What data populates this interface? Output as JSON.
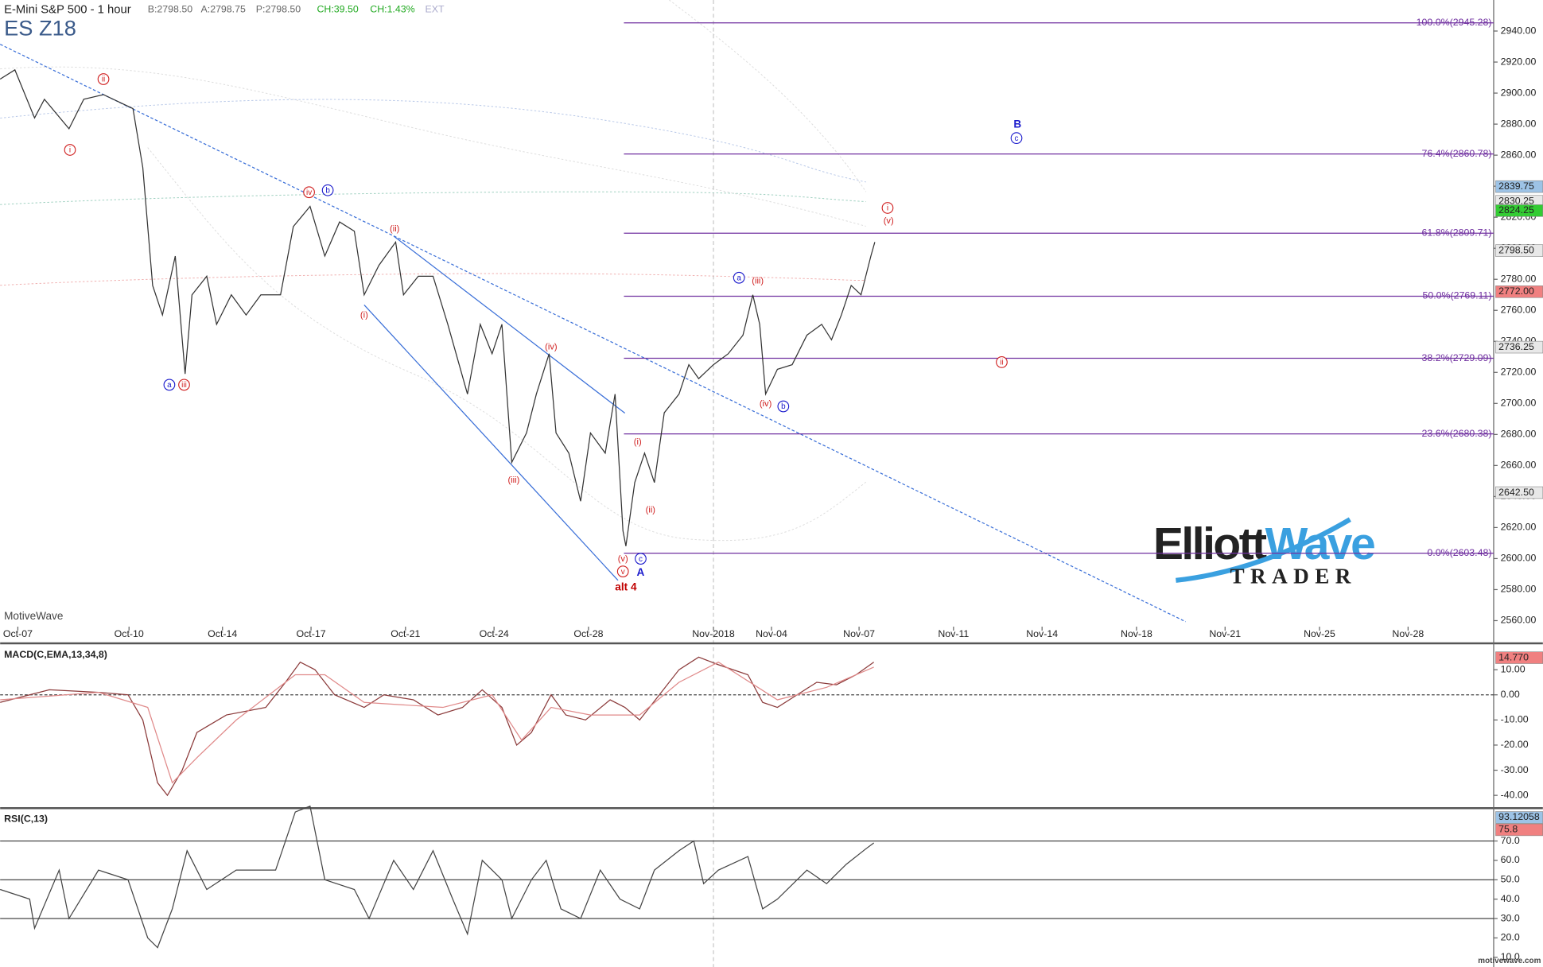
{
  "header": {
    "title": "E-Mini S&P 500 - 1 hour",
    "quote": [
      "B:2798.50",
      "A:2798.75",
      "P:2798.50",
      "CH:39.50",
      "CH:1.43%",
      "EXT"
    ],
    "symbol": "ES Z18"
  },
  "footer": {
    "left": "MotiveWave",
    "right": "motivewave.com"
  },
  "logo": {
    "part1": "Elliott",
    "part2": "Wave",
    "part3": "TRADER"
  },
  "chart_data": [
    {
      "type": "line",
      "xlim": [
        0,
        151.8
      ],
      "xticks": [
        {
          "value": 1.8,
          "label": "Oct-07"
        },
        {
          "value": 13.1,
          "label": "Oct-10"
        },
        {
          "value": 22.6,
          "label": "Oct-14"
        },
        {
          "value": 31.6,
          "label": "Oct-17"
        },
        {
          "value": 41.2,
          "label": "Oct-21"
        },
        {
          "value": 50.2,
          "label": "Oct-24"
        },
        {
          "value": 59.8,
          "label": "Oct-28"
        },
        {
          "value": 72.5,
          "label": "Nov-2018"
        },
        {
          "value": 78.4,
          "label": "Nov-04"
        },
        {
          "value": 87.3,
          "label": "Nov-07"
        },
        {
          "value": 96.9,
          "label": "Nov-11"
        },
        {
          "value": 105.9,
          "label": "Nov-14"
        },
        {
          "value": 115.5,
          "label": "Nov-18"
        },
        {
          "value": 124.5,
          "label": "Nov-21"
        },
        {
          "value": 134.1,
          "label": "Nov-25"
        },
        {
          "value": 143.1,
          "label": "Nov-28"
        }
      ],
      "ylim": [
        2546,
        2960
      ],
      "yticks": [
        {
          "value": 2560,
          "label": "2560.00"
        },
        {
          "value": 2580,
          "label": "2580.00"
        },
        {
          "value": 2600,
          "label": "2600.00"
        },
        {
          "value": 2620,
          "label": "2620.00"
        },
        {
          "value": 2640,
          "label": "2640.00"
        },
        {
          "value": 2660,
          "label": "2660.00"
        },
        {
          "value": 2680,
          "label": "2680.00"
        },
        {
          "value": 2700,
          "label": "2700.00"
        },
        {
          "value": 2720,
          "label": "2720.00"
        },
        {
          "value": 2740,
          "label": "2740.00"
        },
        {
          "value": 2760,
          "label": "2760.00"
        },
        {
          "value": 2780,
          "label": "2780.00"
        },
        {
          "value": 2800,
          "label": "2800.00"
        },
        {
          "value": 2820,
          "label": "2820.00"
        },
        {
          "value": 2840,
          "label": "2840.00"
        },
        {
          "value": 2860,
          "label": "2860.00"
        },
        {
          "value": 2880,
          "label": "2880.00"
        },
        {
          "value": 2900,
          "label": "2900.00"
        },
        {
          "value": 2920,
          "label": "2920.00"
        },
        {
          "value": 2940,
          "label": "2940.00"
        }
      ],
      "series": [
        {
          "color": "#333333",
          "x": [
            0,
            1.5,
            3.5,
            4.5,
            7,
            8.5,
            10.5,
            13.5,
            14.5,
            15.5,
            16.5,
            17.8,
            18.8,
            19.5,
            21,
            22,
            23.5,
            25,
            26.5,
            28.5,
            29.8,
            31.5,
            33,
            34.5,
            36,
            37,
            38.5,
            40.2,
            41,
            42.5,
            44,
            45.5,
            47.5,
            48.8,
            50,
            51,
            52,
            53.5,
            54.5,
            55.8,
            56.5,
            57.8,
            59,
            60,
            61.5,
            62.5,
            63.3,
            63.6,
            64.5,
            65.5,
            66.5,
            67.5,
            69,
            70,
            71,
            72.5,
            74,
            75.5,
            76.5,
            77.2,
            77.8,
            79,
            80.5,
            82,
            83.5,
            84.5,
            85.5,
            86.5,
            87.5,
            88.5,
            88.9
          ],
          "values": [
            2909,
            2915,
            2884,
            2896,
            2877,
            2896,
            2899,
            2890,
            2852,
            2776,
            2757,
            2795,
            2719,
            2770,
            2782,
            2751,
            2770,
            2757,
            2770,
            2770,
            2814,
            2827,
            2795,
            2817,
            2811,
            2770,
            2789,
            2804,
            2770,
            2782,
            2782,
            2751,
            2706,
            2751,
            2732,
            2751,
            2662,
            2681,
            2706,
            2732,
            2681,
            2668,
            2637,
            2681,
            2668,
            2706,
            2618,
            2608,
            2649,
            2668,
            2649,
            2694,
            2706,
            2725,
            2716,
            2725,
            2732,
            2744,
            2770,
            2751,
            2706,
            2722,
            2725,
            2744,
            2751,
            2741,
            2757,
            2776,
            2770,
            2795,
            2804
          ]
        }
      ],
      "fib_levels": [
        {
          "value": 2945.28,
          "label": "100.0%(2945.28)"
        },
        {
          "value": 2860.78,
          "label": "76.4%(2860.78)"
        },
        {
          "value": 2809.71,
          "label": "61.8%(2809.71)"
        },
        {
          "value": 2769.11,
          "label": "50.0%(2769.11)"
        },
        {
          "value": 2729.09,
          "label": "38.2%(2729.09)"
        },
        {
          "value": 2680.38,
          "label": "23.6%(2680.38)"
        },
        {
          "value": 2603.48,
          "label": "0.0%(2603.48)"
        }
      ],
      "fib_color": "#7030a0",
      "price_tags": [
        {
          "value": 2839.75,
          "label": "2839.75",
          "color": "#9dc3e6"
        },
        {
          "value": 2830.25,
          "label": "2830.25",
          "color": "#e8e8e8"
        },
        {
          "value": 2824.25,
          "label": "2824.25",
          "color": "#33cc33"
        },
        {
          "value": 2798.5,
          "label": "2798.50",
          "color": "#e8e8e8"
        },
        {
          "value": 2772,
          "label": "2772.00",
          "color": "#f08080"
        },
        {
          "value": 2736.25,
          "label": "2736.25",
          "color": "#e8e8e8"
        },
        {
          "value": 2642.5,
          "label": "2642.50",
          "color": "#e8e8e8"
        }
      ],
      "annotations": [
        {
          "text": "ii",
          "x": 10.5,
          "y": 2909.0,
          "color": "#d02020",
          "style": "circle"
        },
        {
          "text": "i",
          "x": 7.1,
          "y": 2863.4,
          "color": "#d02020",
          "style": "circle"
        },
        {
          "text": "iv",
          "x": 31.4,
          "y": 2836.1,
          "color": "#d02020",
          "style": "circle"
        },
        {
          "text": "iii",
          "x": 18.7,
          "y": 2712.0,
          "color": "#d02020",
          "style": "circle"
        },
        {
          "text": "i",
          "x": 90.2,
          "y": 2826.0,
          "color": "#d02020",
          "style": "circle"
        },
        {
          "text": "ii",
          "x": 101.8,
          "y": 2726.6,
          "color": "#d02020",
          "style": "circle"
        },
        {
          "text": "v",
          "x": 63.3,
          "y": 2591.7,
          "color": "#d02020",
          "style": "circle"
        },
        {
          "text": "b",
          "x": 33.3,
          "y": 2837.4,
          "color": "#1a1acc",
          "style": "circle"
        },
        {
          "text": "a",
          "x": 17.2,
          "y": 2712.0,
          "color": "#1a1acc",
          "style": "circle"
        },
        {
          "text": "a",
          "x": 75.1,
          "y": 2781.0,
          "color": "#1a1acc",
          "style": "circle"
        },
        {
          "text": "b",
          "x": 79.6,
          "y": 2698.1,
          "color": "#1a1acc",
          "style": "circle"
        },
        {
          "text": "c",
          "x": 103.3,
          "y": 2871.0,
          "color": "#1a1acc",
          "style": "circle"
        },
        {
          "text": "c",
          "x": 65.1,
          "y": 2599.9,
          "color": "#1a1acc",
          "style": "circle"
        },
        {
          "text": "(ii)",
          "x": 40.1,
          "y": 2812.7,
          "color": "#d02020",
          "style": "plain"
        },
        {
          "text": "(i)",
          "x": 37.0,
          "y": 2757.0,
          "color": "#d02020",
          "style": "plain"
        },
        {
          "text": "(iv)",
          "x": 56.0,
          "y": 2736.7,
          "color": "#d02020",
          "style": "plain"
        },
        {
          "text": "(iii)",
          "x": 52.2,
          "y": 2650.6,
          "color": "#d02020",
          "style": "plain"
        },
        {
          "text": "(i)",
          "x": 64.8,
          "y": 2675.3,
          "color": "#d02020",
          "style": "plain"
        },
        {
          "text": "(ii)",
          "x": 66.1,
          "y": 2631.6,
          "color": "#d02020",
          "style": "plain"
        },
        {
          "text": "(v)",
          "x": 63.3,
          "y": 2599.9,
          "color": "#d02020",
          "style": "plain"
        },
        {
          "text": "(iii)",
          "x": 77.0,
          "y": 2779.1,
          "color": "#d02020",
          "style": "plain"
        },
        {
          "text": "(iv)",
          "x": 77.8,
          "y": 2700.0,
          "color": "#d02020",
          "style": "plain"
        },
        {
          "text": "(v)",
          "x": 90.3,
          "y": 2817.8,
          "color": "#d02020",
          "style": "plain"
        },
        {
          "text": "B",
          "x": 103.4,
          "y": 2879.8,
          "color": "#1a1acc",
          "style": "bold"
        },
        {
          "text": "A",
          "x": 65.1,
          "y": 2591.0,
          "color": "#1a1acc",
          "style": "bold"
        },
        {
          "text": "alt 4",
          "x": 63.6,
          "y": 2581.5,
          "color": "#c00000",
          "style": "bold"
        }
      ]
    },
    {
      "type": "line",
      "title": "MACD(C,EMA,13,34,8)",
      "xlim": [
        0,
        151.8
      ],
      "ylim": [
        -44.5,
        19.7
      ],
      "yticks": [
        {
          "value": -40,
          "label": "-40.00"
        },
        {
          "value": -30,
          "label": "-30.00"
        },
        {
          "value": -20,
          "label": "-20.00"
        },
        {
          "value": -10,
          "label": "-10.00"
        },
        {
          "value": 0,
          "label": "0.00"
        },
        {
          "value": 10,
          "label": "10.00"
        }
      ],
      "series": [
        {
          "color": "#8b3a3a",
          "x": [
            0,
            5,
            10,
            13,
            14.5,
            16,
            17,
            18.5,
            20,
            23,
            27,
            29,
            30.5,
            32,
            34,
            37,
            39,
            42,
            44.5,
            47,
            49,
            51,
            52.5,
            54,
            56,
            57.5,
            59.5,
            62,
            63.5,
            65,
            67,
            69,
            71,
            73,
            76,
            77.5,
            79,
            81,
            83,
            85,
            87,
            88.8
          ],
          "values": [
            -3,
            2,
            1,
            0,
            -10,
            -35,
            -40,
            -30,
            -15,
            -8,
            -5,
            5,
            13,
            10,
            0,
            -5,
            0,
            -2,
            -8,
            -5,
            2,
            -5,
            -20,
            -15,
            0,
            -8,
            -10,
            -2,
            -5,
            -10,
            0,
            10,
            15,
            12,
            8,
            -3,
            -5,
            0,
            5,
            4,
            8,
            13
          ]
        },
        {
          "color": "#e08a8a",
          "x": [
            0,
            10,
            15,
            17.5,
            20,
            24,
            30,
            33,
            37,
            45,
            50,
            53,
            56,
            60,
            65,
            69,
            73,
            79,
            84,
            88.8
          ],
          "values": [
            -2,
            1,
            -5,
            -35,
            -25,
            -10,
            8,
            8,
            -3,
            -5,
            0,
            -18,
            -5,
            -8,
            -8,
            5,
            13,
            -2,
            3,
            11
          ]
        }
      ],
      "price_tags": [
        {
          "value": 14.77,
          "label": "14.770",
          "color": "#f08080"
        }
      ]
    },
    {
      "type": "line",
      "title": "RSI(C,13)",
      "xlim": [
        0,
        151.8
      ],
      "ylim": [
        5,
        86.2
      ],
      "yticks": [
        {
          "value": 10,
          "label": "10.0"
        },
        {
          "value": 20,
          "label": "20.0"
        },
        {
          "value": 30,
          "label": "30.0"
        },
        {
          "value": 40,
          "label": "40.0"
        },
        {
          "value": 50,
          "label": "50.0"
        },
        {
          "value": 60,
          "label": "60.0"
        },
        {
          "value": 70,
          "label": "70.0"
        }
      ],
      "levels": [
        70,
        50,
        30
      ],
      "series": [
        {
          "color": "#444444",
          "x": [
            0,
            3,
            3.5,
            6,
            7,
            10,
            13,
            15,
            16,
            17.5,
            19,
            21,
            24,
            28,
            30,
            31.5,
            33,
            36,
            37.5,
            40,
            42,
            44,
            46,
            47.5,
            49,
            51,
            52,
            54,
            55.5,
            57,
            59,
            61,
            63,
            65,
            66.5,
            69,
            70.5,
            71.5,
            73,
            76,
            77.5,
            79,
            82,
            84,
            86,
            88,
            88.8
          ],
          "values": [
            45,
            40,
            25,
            55,
            30,
            55,
            50,
            20,
            15,
            35,
            65,
            45,
            55,
            55,
            85,
            88,
            50,
            45,
            30,
            60,
            45,
            65,
            40,
            22,
            60,
            50,
            30,
            50,
            60,
            35,
            30,
            55,
            40,
            35,
            55,
            65,
            70,
            48,
            55,
            62,
            35,
            40,
            55,
            48,
            58,
            66,
            69
          ]
        }
      ],
      "price_tags": [
        {
          "value": 93.12058,
          "label": "93.12058",
          "color": "#9dc3e6"
        },
        {
          "value": 75.8,
          "label": "75.8",
          "color": "#f08080"
        }
      ]
    }
  ]
}
